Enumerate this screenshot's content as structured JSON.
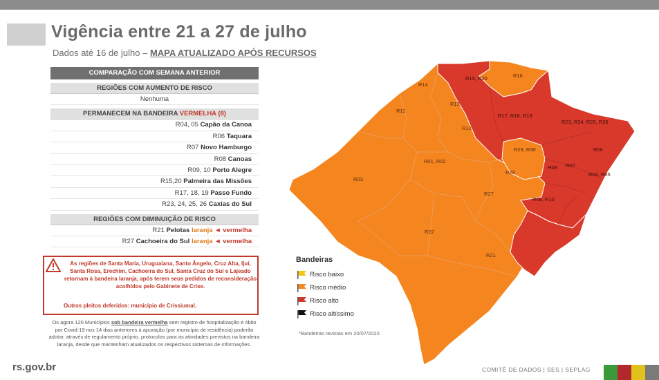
{
  "header": {
    "title": "Vigência entre 21 a 27 de julho",
    "subtitle_prefix": "Dados até 16 de julho –",
    "subtitle_link": "MAPA ATUALIZADO APÓS RECURSOS"
  },
  "table": {
    "main_header": "COMPARAÇÃO COM SEMANA ANTERIOR",
    "aumento": {
      "header": "REGIÕES COM AUMENTO DE RISCO",
      "value": "Nenhuma"
    },
    "permanecem": {
      "header_prefix": "PERMANECEM NA BANDEIRA",
      "header_flag": "VERMELHA (8)",
      "rows": [
        {
          "code": "R04, 05",
          "name": "Capão da Canoa"
        },
        {
          "code": "R06",
          "name": "Taquara"
        },
        {
          "code": "R07",
          "name": "Novo Hamburgo"
        },
        {
          "code": "R08",
          "name": "Canoas"
        },
        {
          "code": "R09, 10",
          "name": "Porto Alegre"
        },
        {
          "code": "R15,20",
          "name": "Palmeira das Missões"
        },
        {
          "code": "R17, 18, 19",
          "name": "Passo Fundo"
        },
        {
          "code": "R23, 24, 25, 26",
          "name": "Caxias do Sul"
        }
      ]
    },
    "diminuicao": {
      "header": "REGIÕES COM DIMINUIÇÃO DE RISCO",
      "rows": [
        {
          "code": "R21",
          "name": "Pelotas",
          "new": "laranja",
          "arrow": "◄",
          "old": "vermelha"
        },
        {
          "code": "R27",
          "name": "Cachoeira do Sul",
          "new": "laranja",
          "arrow": "◄",
          "old": "vermelha"
        }
      ]
    }
  },
  "alert": {
    "text": "As regiões de Santa Maria, Uruguaiana, Santo Ângelo, Cruz Alta, Ijuí, Santa Rosa, Erechim, Cachoeira do Sul, Santa Cruz do Sul e Lajeado retornam à bandeira laranja, após terem seus pedidos de reconsideração acolhidos pelo Gabinete de Crise.",
    "text2": "Outros pleitos deferidos: município de Crissiumal."
  },
  "note": {
    "prefix": "Os agora 120 Municípios",
    "highlight": "sob bandeira vermelha",
    "rest": "sem registro de hospitalização e óbito por Covid-19 nos 14 dias anteriores à apuração (por município de residência) poderão adotar, através de regulamento próprio, protocolos para as atividades previstos na bandeira laranja, desde que mantenham atualizados os respectivos sistemas de informações."
  },
  "legend": {
    "title": "Bandeiras",
    "items": [
      {
        "label": "Risco baixo",
        "color": "#f5c518"
      },
      {
        "label": "Risco médio",
        "color": "#f08a24"
      },
      {
        "label": "Risco alto",
        "color": "#d0392b"
      },
      {
        "label": "Risco altíssimo",
        "color": "#111111"
      }
    ],
    "note": "*Bandeiras revistas em 20/07/2020"
  },
  "map": {
    "colors": {
      "orange": "#f5861f",
      "red": "#d9392b",
      "border": "#e8a066"
    },
    "labels": [
      "R14",
      "R15, R20",
      "R16",
      "R11",
      "R13",
      "R12",
      "R17, R18, R19",
      "R23, R24, R25, R26",
      "R01, R02",
      "R29, R30",
      "R06",
      "R08",
      "R07",
      "R04, R05",
      "R03",
      "R28",
      "R27",
      "R09, R10",
      "R22",
      "R21"
    ]
  },
  "footer": {
    "site": "rs.gov.br",
    "credits": "COMITÊ DE DADOS | SES | SEPLAG",
    "stripe_colors": [
      "#3a9a3a",
      "#b3282d",
      "#e0c21a",
      "#7a7a7a"
    ]
  }
}
